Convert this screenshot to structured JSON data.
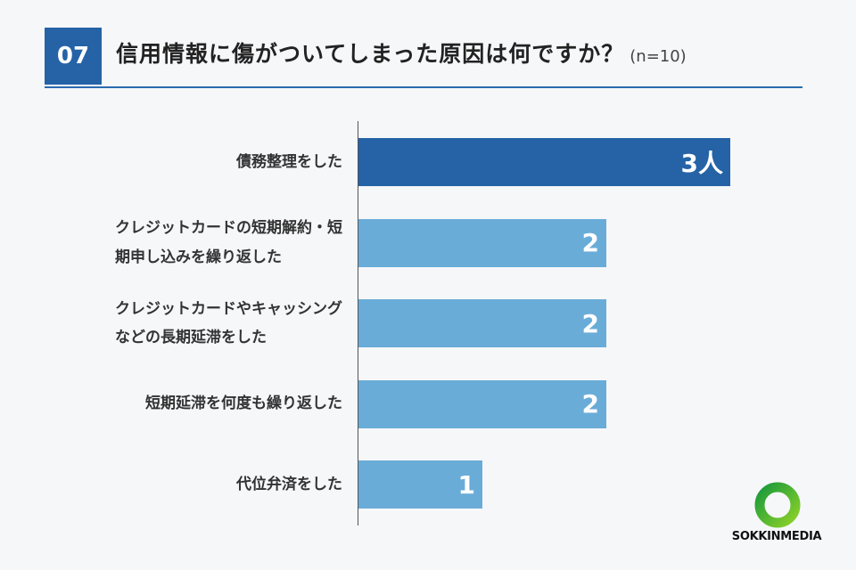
{
  "header": {
    "number": "07",
    "question": "信用情報に傷がついてしまった原因は何ですか？",
    "sample": "(n=10)"
  },
  "chart_data": {
    "type": "bar",
    "orientation": "horizontal",
    "categories": [
      "債務整理をした",
      "クレジットカードの短期解約・短期申し込みを繰り返した",
      "クレジットカードやキャッシングなどの長期延滞をした",
      "短期延滞を何度も繰り返した",
      "代位弁済をした"
    ],
    "category_lines": [
      [
        "債務整理をした"
      ],
      [
        "クレジットカードの短期解約・短",
        "期申し込みを繰り返した"
      ],
      [
        "クレジットカードやキャッシング",
        "などの長期延滞をした"
      ],
      [
        "短期延滞を何度も繰り返した"
      ],
      [
        "代位弁済をした"
      ]
    ],
    "values": [
      3,
      2,
      2,
      2,
      1
    ],
    "value_labels": [
      "3人",
      "2",
      "2",
      "2",
      "1"
    ],
    "xlim": [
      0,
      3
    ],
    "grid": false,
    "colors": {
      "highlight": "#2563a6",
      "default": "#6aacd8"
    }
  },
  "logo": {
    "brand_a": "SOKKIN",
    "brand_b": "MEDIA",
    "colors": {
      "brand": "#1a9a3c",
      "accent": "#8bd128",
      "text": "#111111"
    }
  }
}
